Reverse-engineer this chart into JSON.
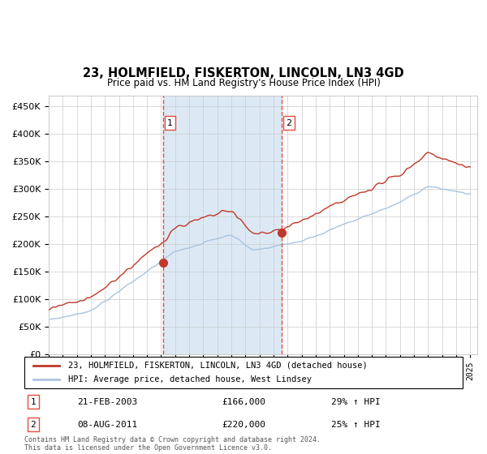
{
  "title": "23, HOLMFIELD, FISKERTON, LINCOLN, LN3 4GD",
  "subtitle": "Price paid vs. HM Land Registry's House Price Index (HPI)",
  "legend_line1": "23, HOLMFIELD, FISKERTON, LINCOLN, LN3 4GD (detached house)",
  "legend_line2": "HPI: Average price, detached house, West Lindsey",
  "transaction1_label": "1",
  "transaction1_date": "21-FEB-2003",
  "transaction1_price": 166000,
  "transaction1_pct": "29% ↑ HPI",
  "transaction2_label": "2",
  "transaction2_date": "08-AUG-2011",
  "transaction2_price": 220000,
  "transaction2_pct": "25% ↑ HPI",
  "footer": "Contains HM Land Registry data © Crown copyright and database right 2024.\nThis data is licensed under the Open Government Licence v3.0.",
  "hpi_color": "#aac4e0",
  "price_color": "#c0392b",
  "marker_color": "#c0392b",
  "vline_color": "#e74c3c",
  "shade_color": "#dce9f5",
  "grid_color": "#cccccc",
  "bg_color": "#ffffff",
  "ylim": [
    0,
    470000
  ],
  "yticks": [
    0,
    50000,
    100000,
    150000,
    200000,
    250000,
    300000,
    350000,
    400000,
    450000
  ],
  "x_start_year": 1995,
  "x_end_year": 2025,
  "transaction1_x": 2003.13,
  "transaction2_x": 2011.59
}
